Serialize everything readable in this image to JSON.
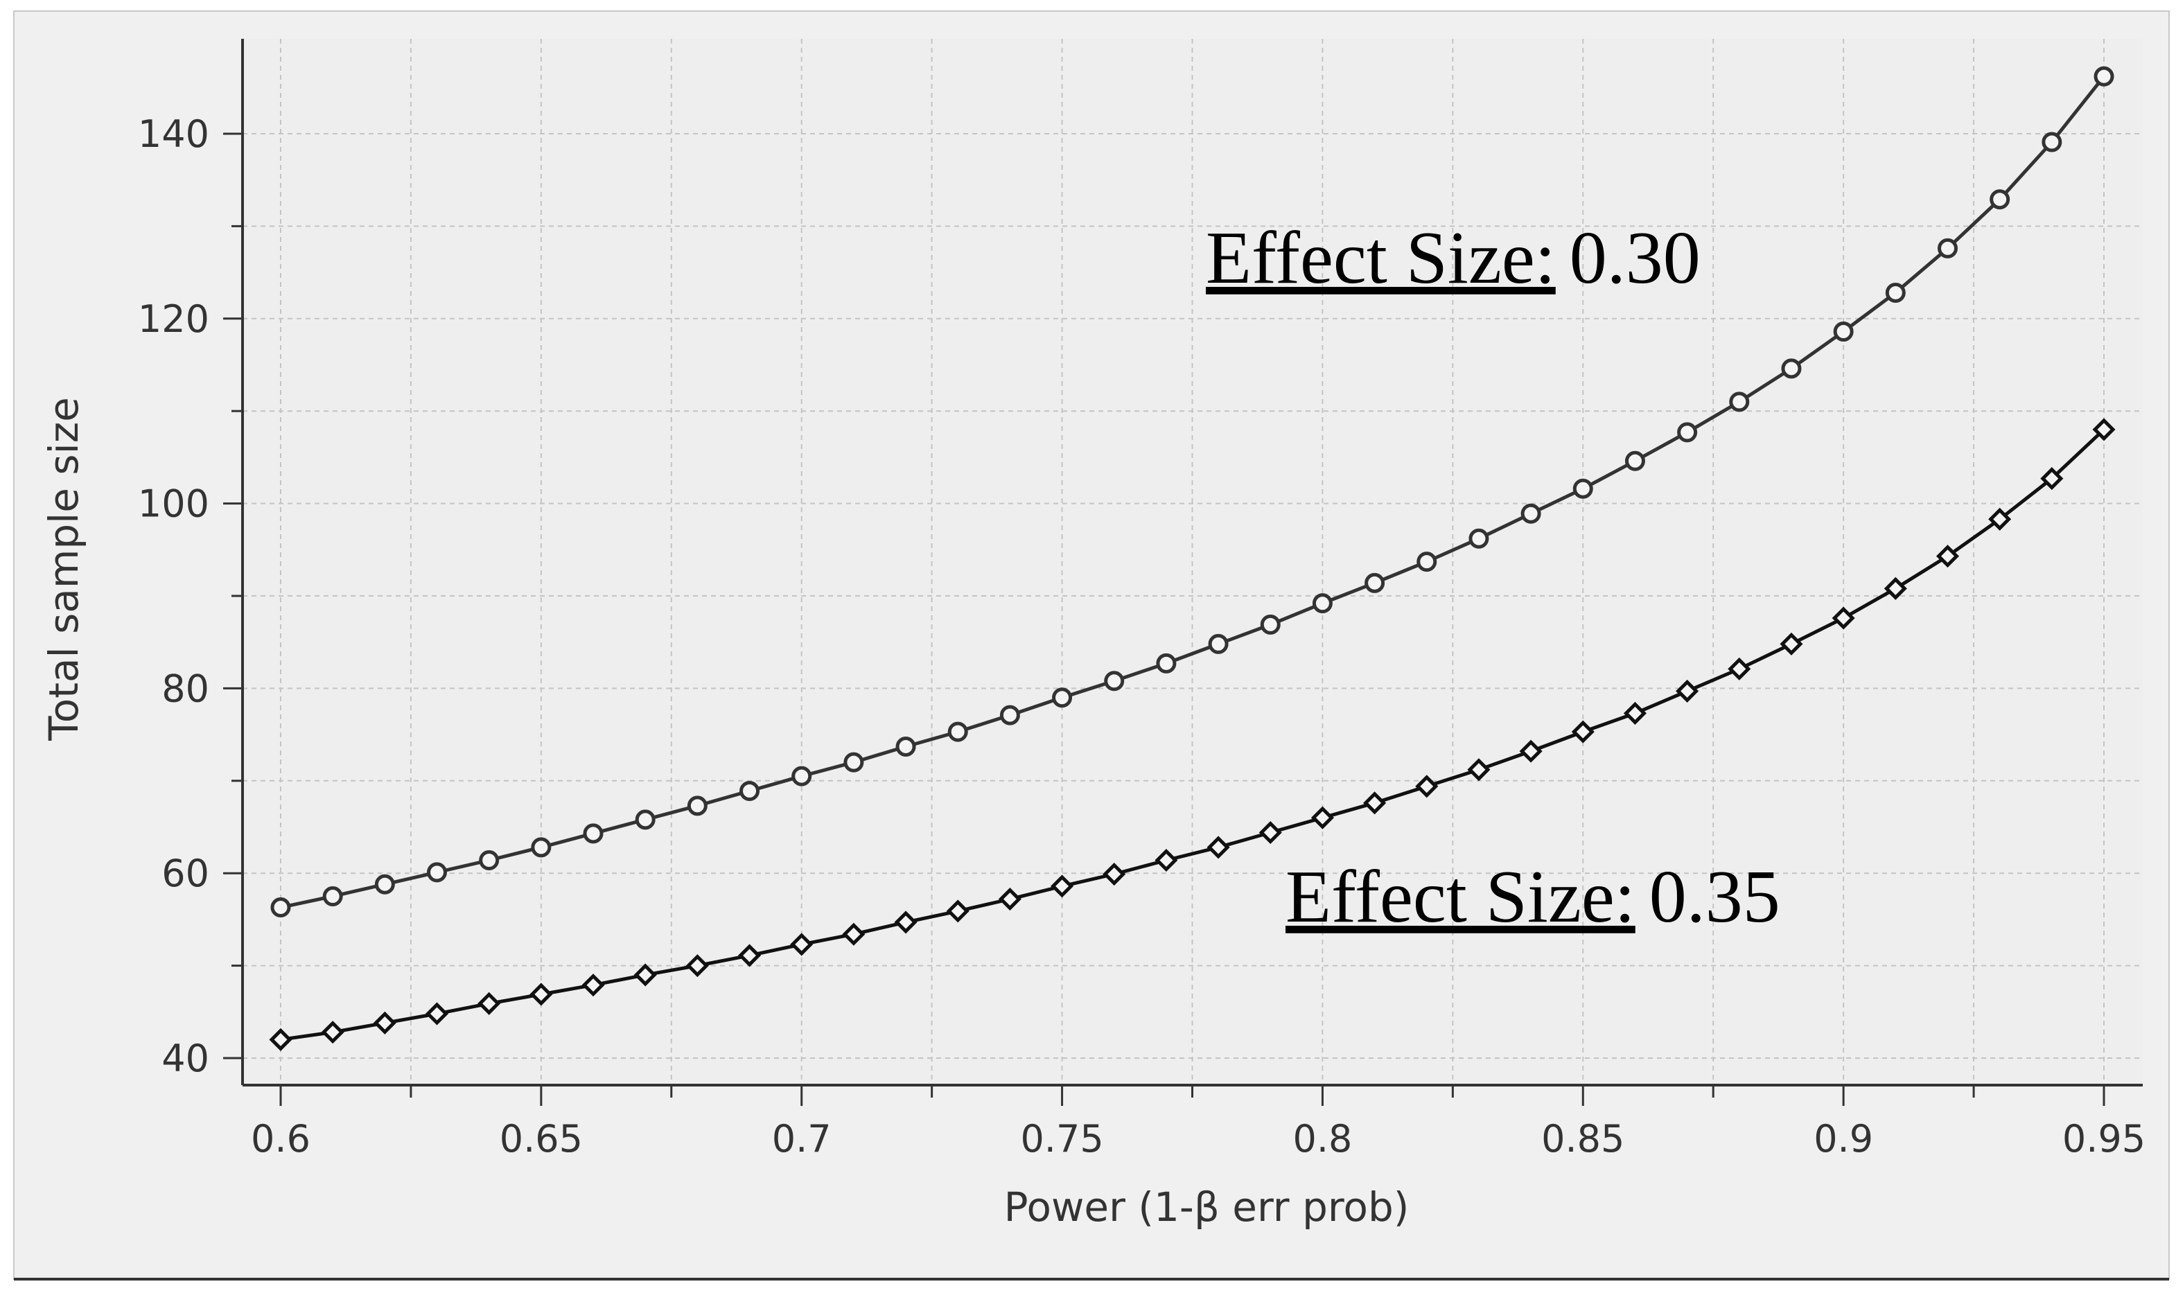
{
  "chart_data": {
    "type": "line",
    "title": "",
    "xlabel": "Power (1-β err prob)",
    "ylabel": "Total sample size",
    "xlim": [
      0.6,
      0.95
    ],
    "ylim": [
      40,
      150
    ],
    "x_ticks": [
      "0.6",
      "0.65",
      "0.7",
      "0.75",
      "0.8",
      "0.85",
      "0.9",
      "0.95"
    ],
    "y_ticks": [
      "40",
      "60",
      "80",
      "100",
      "120",
      "140"
    ],
    "grid": true,
    "x": [
      0.6,
      0.61,
      0.62,
      0.63,
      0.64,
      0.65,
      0.66,
      0.67,
      0.68,
      0.69,
      0.7,
      0.71,
      0.72,
      0.73,
      0.74,
      0.75,
      0.76,
      0.77,
      0.78,
      0.79,
      0.8,
      0.81,
      0.82,
      0.83,
      0.84,
      0.85,
      0.86,
      0.87,
      0.88,
      0.89,
      0.9,
      0.91,
      0.92,
      0.93,
      0.94,
      0.95
    ],
    "series": [
      {
        "name": "Effect Size: 0.30",
        "marker": "circle",
        "color": "#333333",
        "values": [
          56.3,
          57.5,
          58.8,
          60.1,
          61.4,
          62.8,
          64.3,
          65.8,
          67.3,
          68.9,
          70.5,
          72.0,
          73.7,
          75.3,
          77.1,
          79.0,
          80.8,
          82.7,
          84.8,
          86.9,
          89.2,
          91.4,
          93.7,
          96.2,
          98.9,
          101.6,
          104.6,
          107.7,
          111.0,
          114.6,
          118.6,
          122.8,
          127.6,
          132.9,
          139.1,
          146.2
        ]
      },
      {
        "name": "Effect Size: 0.35",
        "marker": "diamond",
        "color": "#111111",
        "values": [
          42.0,
          42.8,
          43.8,
          44.8,
          45.9,
          46.9,
          47.9,
          49.0,
          50.0,
          51.1,
          52.3,
          53.4,
          54.7,
          55.9,
          57.2,
          58.6,
          59.9,
          61.4,
          62.8,
          64.4,
          66.0,
          67.6,
          69.4,
          71.2,
          73.2,
          75.3,
          77.3,
          79.7,
          82.1,
          84.8,
          87.6,
          90.8,
          94.3,
          98.3,
          102.7,
          108.0
        ]
      }
    ],
    "annotations": [
      {
        "label": "Effect Size:",
        "value": "0.30"
      },
      {
        "label": "Effect Size:",
        "value": "0.35"
      }
    ]
  }
}
